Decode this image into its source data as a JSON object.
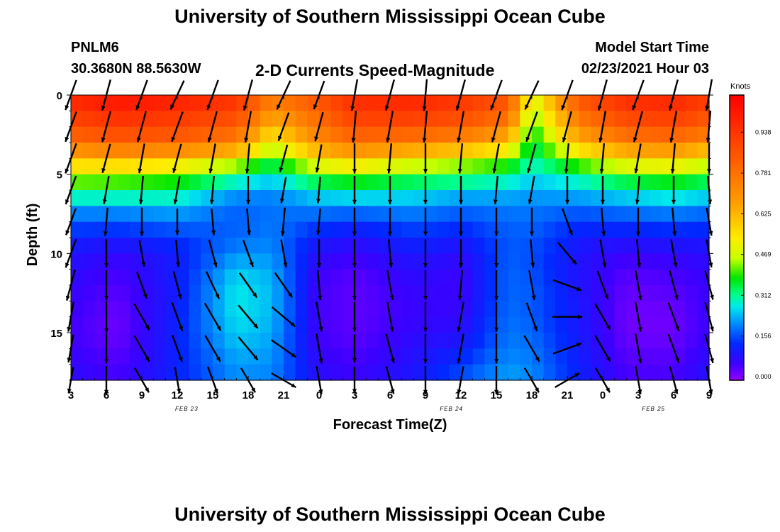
{
  "header": {
    "title": "University of Southern Mississippi Ocean Cube",
    "station_id": "PNLM6",
    "station_coords": "30.3680N 88.5630W",
    "plot_title": "2-D Currents Speed-Magnitude",
    "model_start_label": "Model Start Time",
    "model_start_value": "02/23/2021 Hour 03"
  },
  "footer": {
    "title": "University of Southern Mississippi Ocean Cube"
  },
  "chart_data": {
    "type": "heatmap",
    "title": "2-D Currents Speed-Magnitude",
    "xlabel": "Forecast Time(Z)",
    "ylabel": "Depth (ft)",
    "x_range_hours": [
      0,
      54
    ],
    "y_range_ft": [
      0,
      18
    ],
    "x_ticks": [
      {
        "hour": 0,
        "label": "3"
      },
      {
        "hour": 3,
        "label": "6"
      },
      {
        "hour": 6,
        "label": "9"
      },
      {
        "hour": 9,
        "label": "12"
      },
      {
        "hour": 12,
        "label": "15"
      },
      {
        "hour": 15,
        "label": "18"
      },
      {
        "hour": 18,
        "label": "21"
      },
      {
        "hour": 21,
        "label": "0"
      },
      {
        "hour": 24,
        "label": "3"
      },
      {
        "hour": 27,
        "label": "6"
      },
      {
        "hour": 30,
        "label": "9"
      },
      {
        "hour": 33,
        "label": "12"
      },
      {
        "hour": 36,
        "label": "15"
      },
      {
        "hour": 39,
        "label": "18"
      },
      {
        "hour": 42,
        "label": "21"
      },
      {
        "hour": 45,
        "label": "0"
      },
      {
        "hour": 48,
        "label": "3"
      },
      {
        "hour": 51,
        "label": "6"
      },
      {
        "hour": 54,
        "label": "9"
      }
    ],
    "date_labels": [
      {
        "hour": 9.8,
        "label": "FEB 23"
      },
      {
        "hour": 32.2,
        "label": "FEB 24"
      },
      {
        "hour": 49.3,
        "label": "FEB 25"
      }
    ],
    "y_ticks": [
      0,
      5,
      10,
      15
    ],
    "colorbar": {
      "unit": "Knots",
      "min": 0.0,
      "max": 1.094,
      "ticks": [
        "0.000",
        "0.156",
        "0.312",
        "0.469",
        "0.625",
        "0.781",
        "0.938"
      ]
    },
    "depth_levels_ft": [
      0,
      1,
      2,
      3,
      4,
      5,
      6,
      7,
      8,
      9,
      10,
      11,
      12,
      13,
      14,
      15,
      16,
      17,
      18
    ],
    "speed_profiles_knots": [
      {
        "hour": 0,
        "values": [
          1.0,
          0.95,
          0.88,
          0.8,
          0.62,
          0.5,
          0.36,
          0.24,
          0.18,
          0.13,
          0.1,
          0.09,
          0.08,
          0.07,
          0.07,
          0.06,
          0.07,
          0.08,
          0.09
        ]
      },
      {
        "hour": 4,
        "values": [
          1.05,
          1.0,
          0.92,
          0.84,
          0.66,
          0.48,
          0.36,
          0.24,
          0.18,
          0.12,
          0.08,
          0.06,
          0.05,
          0.04,
          0.03,
          0.03,
          0.04,
          0.05,
          0.06
        ]
      },
      {
        "hour": 9,
        "values": [
          1.02,
          0.97,
          0.9,
          0.83,
          0.62,
          0.45,
          0.34,
          0.26,
          0.2,
          0.15,
          0.12,
          0.12,
          0.12,
          0.12,
          0.13,
          0.13,
          0.13,
          0.13,
          0.13
        ]
      },
      {
        "hour": 14,
        "values": [
          0.97,
          0.92,
          0.84,
          0.76,
          0.55,
          0.36,
          0.24,
          0.19,
          0.18,
          0.19,
          0.22,
          0.26,
          0.28,
          0.29,
          0.28,
          0.27,
          0.25,
          0.23,
          0.22
        ]
      },
      {
        "hour": 17,
        "values": [
          0.78,
          0.72,
          0.62,
          0.52,
          0.4,
          0.3,
          0.22,
          0.2,
          0.2,
          0.21,
          0.22,
          0.24,
          0.25,
          0.25,
          0.25,
          0.24,
          0.23,
          0.22,
          0.21
        ]
      },
      {
        "hour": 21,
        "values": [
          0.88,
          0.84,
          0.78,
          0.72,
          0.58,
          0.42,
          0.3,
          0.22,
          0.17,
          0.12,
          0.09,
          0.07,
          0.06,
          0.06,
          0.06,
          0.06,
          0.07,
          0.08,
          0.09
        ]
      },
      {
        "hour": 24,
        "values": [
          0.98,
          0.95,
          0.88,
          0.8,
          0.62,
          0.45,
          0.32,
          0.22,
          0.15,
          0.1,
          0.07,
          0.05,
          0.04,
          0.04,
          0.04,
          0.04,
          0.05,
          0.06,
          0.07
        ]
      },
      {
        "hour": 29,
        "values": [
          1.0,
          0.96,
          0.88,
          0.76,
          0.56,
          0.4,
          0.3,
          0.23,
          0.18,
          0.14,
          0.11,
          0.09,
          0.08,
          0.07,
          0.07,
          0.08,
          0.09,
          0.1,
          0.11
        ]
      },
      {
        "hour": 33,
        "values": [
          0.96,
          0.92,
          0.84,
          0.72,
          0.52,
          0.38,
          0.27,
          0.2,
          0.16,
          0.12,
          0.09,
          0.07,
          0.07,
          0.07,
          0.08,
          0.09,
          0.12,
          0.15,
          0.18
        ]
      },
      {
        "hour": 37,
        "values": [
          0.88,
          0.84,
          0.75,
          0.62,
          0.46,
          0.34,
          0.26,
          0.21,
          0.19,
          0.18,
          0.18,
          0.19,
          0.19,
          0.19,
          0.2,
          0.2,
          0.21,
          0.22,
          0.24
        ]
      },
      {
        "hour": 39,
        "values": [
          0.5,
          0.45,
          0.4,
          0.36,
          0.32,
          0.28,
          0.24,
          0.21,
          0.19,
          0.18,
          0.17,
          0.17,
          0.18,
          0.18,
          0.18,
          0.19,
          0.2,
          0.21,
          0.22
        ]
      },
      {
        "hour": 43,
        "values": [
          0.88,
          0.82,
          0.74,
          0.64,
          0.48,
          0.34,
          0.26,
          0.2,
          0.15,
          0.12,
          0.1,
          0.1,
          0.1,
          0.11,
          0.11,
          0.11,
          0.12,
          0.12,
          0.13
        ]
      },
      {
        "hour": 47,
        "values": [
          0.98,
          0.94,
          0.86,
          0.76,
          0.58,
          0.42,
          0.3,
          0.22,
          0.16,
          0.11,
          0.07,
          0.05,
          0.04,
          0.03,
          0.03,
          0.03,
          0.04,
          0.05,
          0.06
        ]
      },
      {
        "hour": 51,
        "values": [
          1.0,
          0.96,
          0.88,
          0.78,
          0.6,
          0.44,
          0.33,
          0.24,
          0.17,
          0.12,
          0.08,
          0.06,
          0.05,
          0.04,
          0.03,
          0.03,
          0.04,
          0.05,
          0.06
        ]
      },
      {
        "hour": 54,
        "values": [
          0.94,
          0.9,
          0.82,
          0.72,
          0.54,
          0.4,
          0.3,
          0.22,
          0.16,
          0.12,
          0.09,
          0.08,
          0.07,
          0.07,
          0.07,
          0.07,
          0.08,
          0.09,
          0.1
        ]
      }
    ],
    "arrow_depths_ft": [
      0,
      2,
      4,
      6,
      8,
      10,
      12,
      14,
      16,
      18
    ],
    "arrow_hours": [
      0,
      3,
      6,
      9,
      12,
      15,
      18,
      21,
      24,
      27,
      30,
      33,
      36,
      39,
      42,
      45,
      48,
      51,
      54
    ],
    "arrow_direction_deg": [
      [
        200,
        200,
        200,
        200,
        200,
        200,
        195,
        190,
        190,
        190
      ],
      [
        195,
        195,
        195,
        190,
        185,
        180,
        180,
        180,
        180,
        180
      ],
      [
        200,
        195,
        190,
        185,
        180,
        170,
        160,
        150,
        150,
        150
      ],
      [
        205,
        200,
        195,
        190,
        180,
        175,
        165,
        160,
        160,
        170
      ],
      [
        200,
        195,
        190,
        185,
        175,
        165,
        155,
        150,
        150,
        160
      ],
      [
        195,
        190,
        185,
        180,
        175,
        160,
        145,
        140,
        140,
        150
      ],
      [
        205,
        200,
        195,
        190,
        185,
        170,
        145,
        130,
        125,
        120
      ],
      [
        200,
        195,
        190,
        185,
        185,
        180,
        175,
        170,
        170,
        170
      ],
      [
        190,
        185,
        180,
        180,
        180,
        180,
        180,
        180,
        180,
        180
      ],
      [
        195,
        190,
        185,
        180,
        180,
        175,
        170,
        170,
        165,
        165
      ],
      [
        185,
        185,
        180,
        180,
        180,
        180,
        180,
        180,
        180,
        180
      ],
      [
        195,
        190,
        185,
        180,
        180,
        180,
        185,
        190,
        190,
        190
      ],
      [
        200,
        195,
        190,
        185,
        180,
        180,
        180,
        180,
        180,
        180
      ],
      [
        205,
        200,
        195,
        190,
        180,
        175,
        170,
        160,
        150,
        150
      ],
      [
        200,
        195,
        185,
        180,
        160,
        140,
        110,
        90,
        70,
        60
      ],
      [
        195,
        190,
        185,
        180,
        175,
        170,
        160,
        150,
        150,
        150
      ],
      [
        200,
        195,
        190,
        185,
        180,
        175,
        170,
        170,
        170,
        170
      ],
      [
        195,
        190,
        185,
        180,
        175,
        170,
        165,
        160,
        160,
        165
      ],
      [
        190,
        185,
        180,
        175,
        170,
        170,
        165,
        165,
        165,
        170
      ]
    ],
    "arrow_length_ratio": [
      [
        0.9,
        0.9,
        0.9,
        0.85,
        0.8,
        0.85,
        0.9,
        0.85,
        0.8,
        0.75
      ],
      [
        0.9,
        0.9,
        0.85,
        0.8,
        0.8,
        0.8,
        0.85,
        0.9,
        0.85,
        0.8
      ],
      [
        0.9,
        0.9,
        0.85,
        0.8,
        0.8,
        0.75,
        0.8,
        0.85,
        0.85,
        0.8
      ],
      [
        0.9,
        0.9,
        0.85,
        0.8,
        0.75,
        0.75,
        0.8,
        0.85,
        0.8,
        0.75
      ],
      [
        0.9,
        0.9,
        0.85,
        0.8,
        0.75,
        0.8,
        0.85,
        0.9,
        0.85,
        0.8
      ],
      [
        0.9,
        0.9,
        0.85,
        0.8,
        0.75,
        0.8,
        0.85,
        0.85,
        0.85,
        0.8
      ],
      [
        0.9,
        0.85,
        0.8,
        0.75,
        0.8,
        0.8,
        0.85,
        0.85,
        0.85,
        0.8
      ],
      [
        0.85,
        0.85,
        0.8,
        0.75,
        0.75,
        0.8,
        0.85,
        0.85,
        0.85,
        0.8
      ],
      [
        0.9,
        0.9,
        0.85,
        0.8,
        0.8,
        0.8,
        0.85,
        0.85,
        0.8,
        0.75
      ],
      [
        0.9,
        0.9,
        0.85,
        0.8,
        0.8,
        0.8,
        0.85,
        0.85,
        0.85,
        0.8
      ],
      [
        0.9,
        0.9,
        0.85,
        0.8,
        0.8,
        0.8,
        0.85,
        0.85,
        0.85,
        0.8
      ],
      [
        0.9,
        0.9,
        0.85,
        0.8,
        0.8,
        0.8,
        0.85,
        0.85,
        0.85,
        0.8
      ],
      [
        0.9,
        0.9,
        0.85,
        0.8,
        0.8,
        0.8,
        0.85,
        0.85,
        0.85,
        0.8
      ],
      [
        0.9,
        0.9,
        0.85,
        0.8,
        0.8,
        0.8,
        0.85,
        0.85,
        0.85,
        0.8
      ],
      [
        0.9,
        0.9,
        0.85,
        0.8,
        0.8,
        0.8,
        0.85,
        0.85,
        0.85,
        0.8
      ],
      [
        0.9,
        0.9,
        0.85,
        0.8,
        0.8,
        0.8,
        0.85,
        0.85,
        0.85,
        0.8
      ],
      [
        0.9,
        0.9,
        0.85,
        0.8,
        0.8,
        0.8,
        0.85,
        0.85,
        0.85,
        0.8
      ],
      [
        0.9,
        0.9,
        0.85,
        0.8,
        0.8,
        0.8,
        0.85,
        0.85,
        0.85,
        0.8
      ],
      [
        0.9,
        0.9,
        0.85,
        0.8,
        0.8,
        0.8,
        0.85,
        0.85,
        0.85,
        0.8
      ]
    ]
  }
}
